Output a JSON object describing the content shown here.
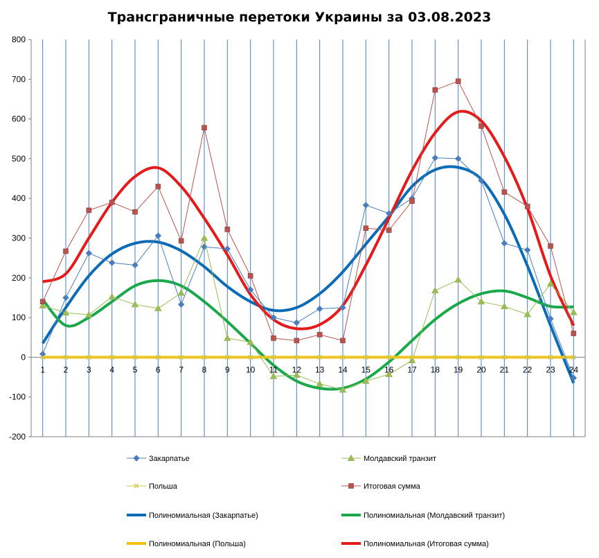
{
  "chart_data": {
    "type": "line",
    "title": "Трансграничные перетоки Украины за 03.08.2023",
    "xlabel": "",
    "ylabel": "",
    "x": [
      1,
      2,
      3,
      4,
      5,
      6,
      7,
      8,
      9,
      10,
      11,
      12,
      13,
      14,
      15,
      16,
      17,
      18,
      19,
      20,
      21,
      22,
      23,
      24
    ],
    "ylim": [
      -200,
      800
    ],
    "yticks": [
      -200,
      -100,
      0,
      100,
      200,
      300,
      400,
      500,
      600,
      700,
      800
    ],
    "grid": "vertical",
    "legend_position": "bottom",
    "series": [
      {
        "name": "Закарпатье",
        "color": "#4a7ebb",
        "marker": "diamond",
        "values": [
          8,
          150,
          262,
          238,
          232,
          306,
          133,
          278,
          273,
          170,
          100,
          87,
          122,
          125,
          383,
          362,
          400,
          502,
          500,
          445,
          287,
          270,
          97,
          -52
        ]
      },
      {
        "name": "Молдавский транзит",
        "color": "#9bbb59",
        "marker": "triangle",
        "values": [
          130,
          112,
          107,
          152,
          133,
          123,
          162,
          300,
          48,
          38,
          -48,
          -45,
          -67,
          -82,
          -60,
          -43,
          -8,
          168,
          195,
          140,
          128,
          108,
          185,
          113
        ]
      },
      {
        "name": "Польша",
        "color": "#d4c84a",
        "marker": "x",
        "values": [
          0,
          0,
          0,
          0,
          0,
          0,
          0,
          0,
          0,
          0,
          0,
          0,
          0,
          0,
          0,
          0,
          0,
          0,
          0,
          0,
          0,
          0,
          0,
          0
        ]
      },
      {
        "name": "Итоговая сумма",
        "color": "#b85450",
        "marker": "square",
        "values": [
          140,
          267,
          370,
          390,
          366,
          430,
          293,
          578,
          322,
          205,
          48,
          42,
          57,
          42,
          325,
          320,
          393,
          673,
          695,
          582,
          416,
          380,
          280,
          60
        ]
      }
    ],
    "trendlines": [
      {
        "name": "Полиномиальная (Закарпатье)",
        "color": "#0b6bb5",
        "values": [
          35,
          125,
          205,
          260,
          287,
          290,
          268,
          228,
          178,
          140,
          118,
          125,
          160,
          215,
          285,
          355,
          430,
          472,
          478,
          448,
          360,
          230,
          80,
          -65
        ]
      },
      {
        "name": "Полиномиальная (Молдавский транзит)",
        "color": "#1aa84a",
        "values": [
          145,
          80,
          100,
          140,
          180,
          193,
          180,
          140,
          90,
          35,
          -20,
          -60,
          -78,
          -78,
          -55,
          -12,
          42,
          95,
          135,
          160,
          167,
          150,
          128,
          127
        ]
      },
      {
        "name": "Полиномиальная (Польша)",
        "color": "#f6c20e",
        "values": [
          0,
          0,
          0,
          0,
          0,
          0,
          0,
          0,
          0,
          0,
          0,
          0,
          0,
          0,
          0,
          0,
          0,
          0,
          0,
          0,
          0,
          0,
          0,
          0
        ]
      },
      {
        "name": "Полиномиальная (Итоговая сумма)",
        "color": "#e31b1b",
        "values": [
          190,
          210,
          300,
          390,
          455,
          477,
          430,
          350,
          258,
          158,
          95,
          72,
          82,
          130,
          232,
          350,
          470,
          565,
          618,
          595,
          505,
          375,
          205,
          80
        ]
      }
    ]
  }
}
